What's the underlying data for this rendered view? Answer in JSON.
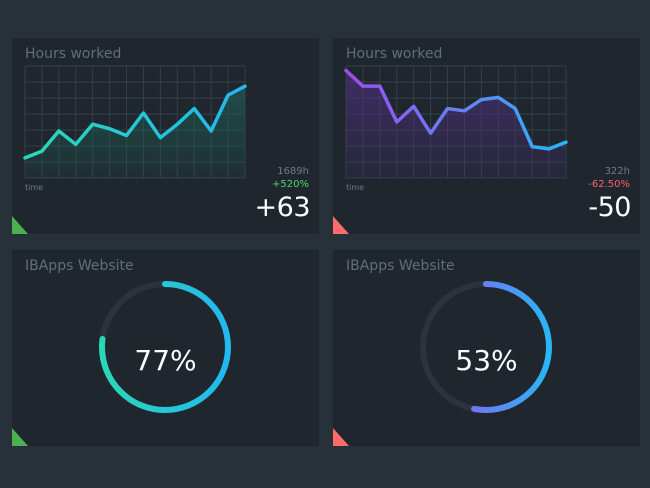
{
  "colors": {
    "background": "#27313a",
    "card": "#1f262e",
    "title_text": "#5e6f7c",
    "positive": "#4cd964",
    "negative": "#ff5f6d",
    "corner_positive": "#4caf50",
    "corner_negative": "#ff6b6b",
    "teal_start": "#2ad7b8",
    "teal_end": "#22b8f0",
    "purple_start": "#a04cf0",
    "blue_end": "#29b6f6"
  },
  "widgets": [
    {
      "title": "Hours worked",
      "kind": "line-chart",
      "x_label": "time",
      "hours": "1689h",
      "percent": "+520%",
      "percent_trend": "positive",
      "delta": "+63",
      "corner": "positive"
    },
    {
      "title": "Hours worked",
      "kind": "line-chart",
      "x_label": "time",
      "hours": "322h",
      "percent": "-62.50%",
      "percent_trend": "negative",
      "delta": "-50",
      "corner": "negative"
    },
    {
      "title": "IBApps Website",
      "kind": "ring",
      "value_label": "77%",
      "value": 0.77,
      "corner": "positive"
    },
    {
      "title": "IBApps Website",
      "kind": "ring",
      "value_label": "53%",
      "value": 0.53,
      "corner": "negative"
    }
  ],
  "chart_data": [
    {
      "type": "line",
      "x": [
        0,
        1,
        2,
        3,
        4,
        5,
        6,
        7,
        8,
        9,
        10,
        11,
        12,
        13
      ],
      "values": [
        9,
        12,
        21,
        15,
        24,
        22,
        19,
        29,
        18,
        24,
        31,
        21,
        37,
        41
      ],
      "ylim": [
        0,
        50
      ],
      "xlabel": "time",
      "ylabel": "",
      "grid": true
    },
    {
      "type": "line",
      "x": [
        0,
        1,
        2,
        3,
        4,
        5,
        6,
        7,
        8,
        9,
        10,
        11,
        12,
        13
      ],
      "values": [
        48,
        41,
        41,
        25,
        32,
        20,
        31,
        30,
        35,
        36,
        31,
        14,
        13,
        16
      ],
      "ylim": [
        0,
        50
      ],
      "xlabel": "time",
      "ylabel": "",
      "grid": true
    }
  ]
}
